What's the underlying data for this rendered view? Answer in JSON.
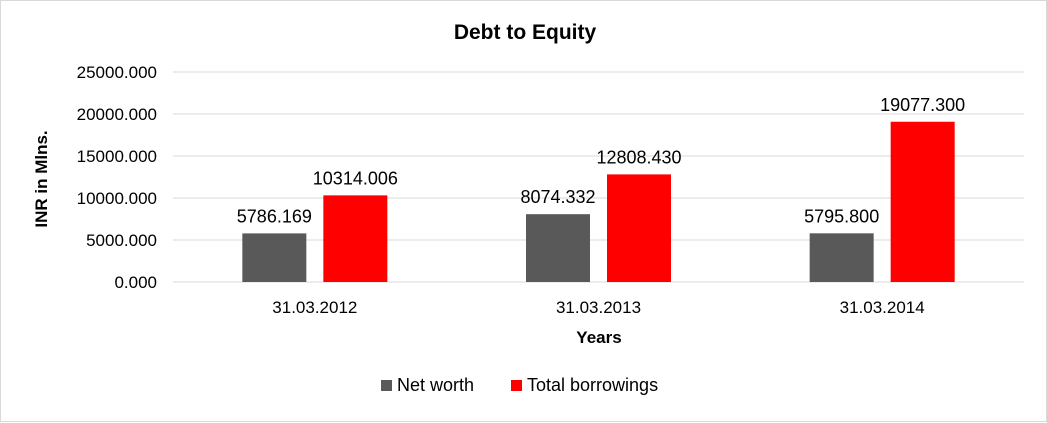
{
  "chart_data": {
    "type": "bar",
    "title": "Debt to Equity",
    "xlabel": "Years",
    "ylabel": "INR in Mlns.",
    "categories": [
      "31.03.2012",
      "31.03.2013",
      "31.03.2014"
    ],
    "series": [
      {
        "name": "Net worth",
        "color": "#595959",
        "values": [
          5786.169,
          8074.332,
          5795.8
        ],
        "labels": [
          "5786.169",
          "8074.332",
          "5795.800"
        ]
      },
      {
        "name": "Total borrowings",
        "color": "#ff0000",
        "values": [
          10314.006,
          12808.43,
          19077.3
        ],
        "labels": [
          "10314.006",
          "12808.430",
          "19077.300"
        ]
      }
    ],
    "yticks": [
      "0.000",
      "5000.000",
      "10000.000",
      "15000.000",
      "20000.000",
      "25000.000"
    ],
    "ylim": [
      0,
      25000
    ],
    "grid": true,
    "legend": "bottom"
  }
}
